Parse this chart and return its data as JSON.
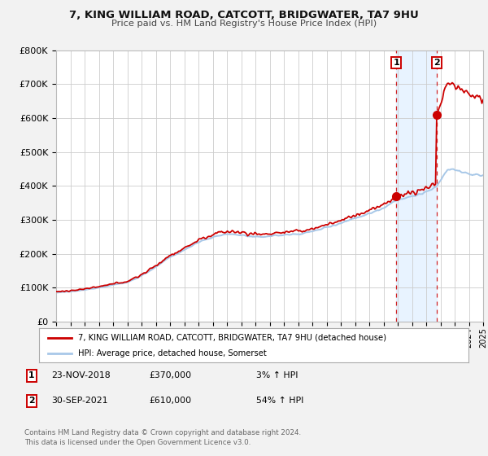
{
  "title": "7, KING WILLIAM ROAD, CATCOTT, BRIDGWATER, TA7 9HU",
  "subtitle": "Price paid vs. HM Land Registry's House Price Index (HPI)",
  "hpi_color": "#a8c8e8",
  "price_color": "#cc0000",
  "bg_color": "#f2f2f2",
  "plot_bg": "#ffffff",
  "grid_color": "#cccccc",
  "shade_color": "#ddeeff",
  "shade_alpha": 0.65,
  "sale1_year": 2018.9,
  "sale1_price": 370000,
  "sale2_year": 2021.75,
  "sale2_price": 610000,
  "ylim": [
    0,
    800000
  ],
  "yticks": [
    0,
    100000,
    200000,
    300000,
    400000,
    500000,
    600000,
    700000,
    800000
  ],
  "ytick_labels": [
    "£0",
    "£100K",
    "£200K",
    "£300K",
    "£400K",
    "£500K",
    "£600K",
    "£700K",
    "£800K"
  ],
  "xlim_start": 1995,
  "xlim_end": 2025,
  "legend1": "7, KING WILLIAM ROAD, CATCOTT, BRIDGWATER, TA7 9HU (detached house)",
  "legend2": "HPI: Average price, detached house, Somerset",
  "note1_num": "1",
  "note1_date": "23-NOV-2018",
  "note1_price": "£370,000",
  "note1_hpi": "3% ↑ HPI",
  "note2_num": "2",
  "note2_date": "30-SEP-2021",
  "note2_price": "£610,000",
  "note2_hpi": "54% ↑ HPI",
  "footer": "Contains HM Land Registry data © Crown copyright and database right 2024.\nThis data is licensed under the Open Government Licence v3.0."
}
